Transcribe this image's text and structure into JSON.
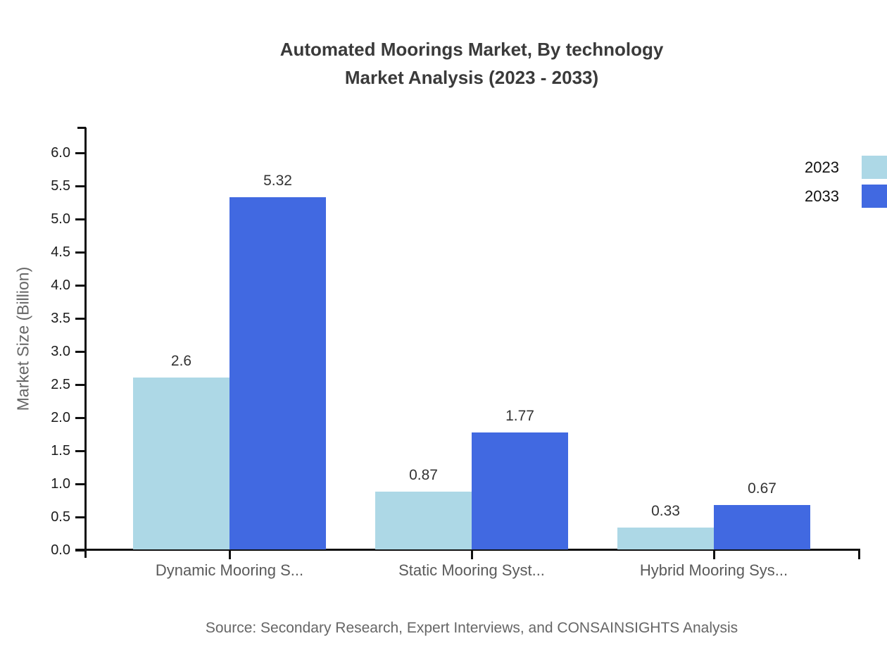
{
  "title": {
    "line1": "Automated Moorings Market, By technology",
    "line2": "Market Analysis (2023 - 2033)"
  },
  "y_axis_title": "Market Size (Billion)",
  "source": "Source: Secondary Research, Expert Interviews, and CONSAINSIGHTS Analysis",
  "legend": {
    "items": [
      {
        "label": "2023",
        "color": "#ADD8E6"
      },
      {
        "label": "2033",
        "color": "#4169E1"
      }
    ]
  },
  "chart_data": {
    "type": "bar",
    "title": "Automated Moorings Market, By technology Market Analysis (2023 - 2033)",
    "categories": [
      "Dynamic Mooring S...",
      "Static Mooring Syst...",
      "Hybrid Mooring Sys..."
    ],
    "series": [
      {
        "name": "2023",
        "color": "#ADD8E6",
        "values": [
          2.6,
          0.87,
          0.33
        ]
      },
      {
        "name": "2033",
        "color": "#4169E1",
        "values": [
          5.32,
          1.77,
          0.67
        ]
      }
    ],
    "xlabel": "",
    "ylabel": "Market Size (Billion)",
    "ylim": [
      0,
      6.38
    ],
    "ytick_labels": [
      "0.0",
      "0.5",
      "1.0",
      "1.5",
      "2.0",
      "2.5",
      "3.0",
      "3.5",
      "4.0",
      "4.5",
      "5.0",
      "5.5",
      "6.0"
    ],
    "grid": false,
    "legend_position": "top-right",
    "value_labels_shown": true
  },
  "colors": {
    "axis": "#111111",
    "title_text": "#3a3a3a",
    "tick_text": "#1c1c1c",
    "category_text": "#5a5a5a",
    "muted_text": "#666666",
    "background": "#ffffff"
  }
}
